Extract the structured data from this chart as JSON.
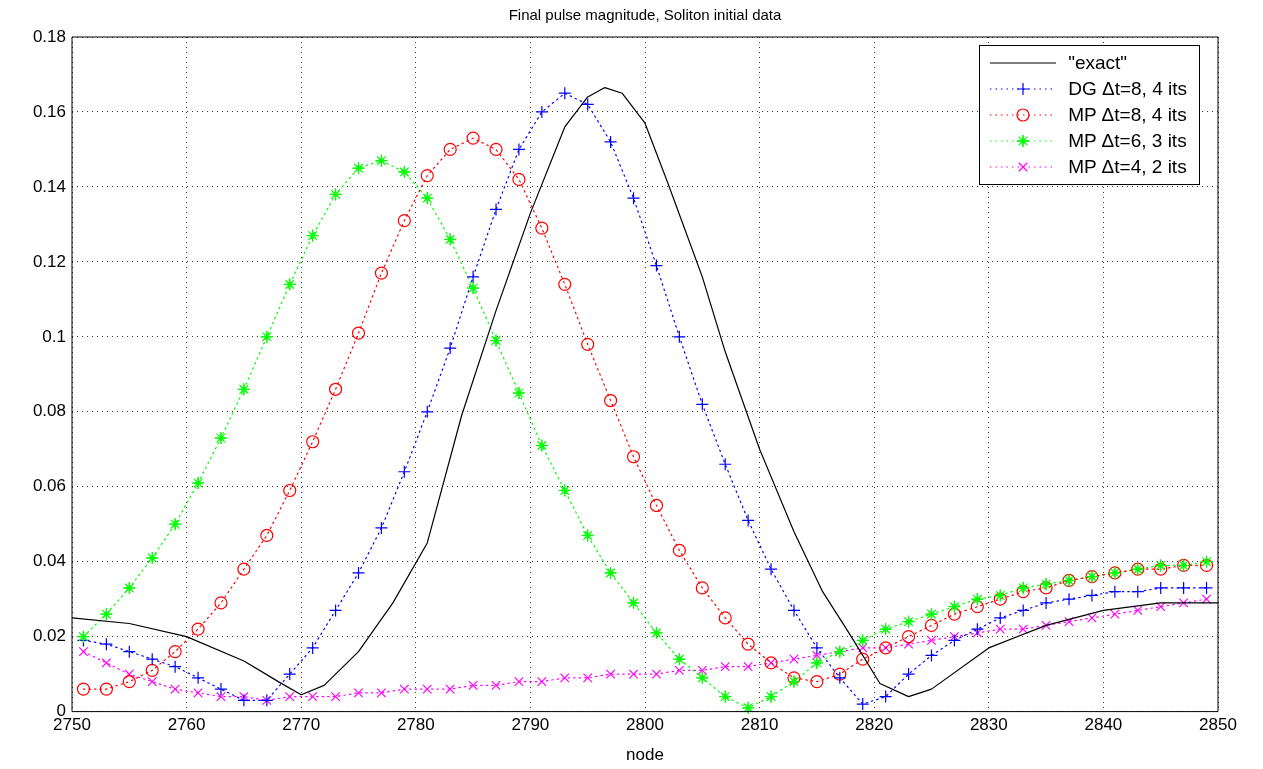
{
  "chart_data": {
    "type": "line",
    "title": "Final pulse magnitude, Soliton initial data",
    "xlabel": "node",
    "xlim": [
      2750,
      2850
    ],
    "xticks": [
      2750,
      2760,
      2770,
      2780,
      2790,
      2800,
      2810,
      2820,
      2830,
      2840,
      2850
    ],
    "ylim": [
      0,
      0.18
    ],
    "yticks": [
      0,
      0.02,
      0.04,
      0.06,
      0.08,
      0.1,
      0.12,
      0.14,
      0.16,
      0.18
    ],
    "grid": true,
    "legend": "top right",
    "series": [
      {
        "name": "\"exact\"",
        "color": "#000000",
        "marker": "none",
        "line_style": "solid",
        "x": [
          2750,
          2755,
          2760,
          2765,
          2768,
          2770,
          2772,
          2775,
          2778,
          2781,
          2784,
          2787,
          2790,
          2793,
          2795,
          2796.5,
          2798,
          2800,
          2802,
          2805,
          2807,
          2810,
          2813,
          2815.5,
          2818,
          2820.5,
          2823,
          2825,
          2830,
          2835,
          2840,
          2845,
          2850
        ],
        "values": [
          0.025,
          0.0235,
          0.02,
          0.0135,
          0.008,
          0.0045,
          0.007,
          0.016,
          0.029,
          0.045,
          0.079,
          0.107,
          0.133,
          0.156,
          0.164,
          0.1665,
          0.165,
          0.157,
          0.141,
          0.116,
          0.096,
          0.07,
          0.048,
          0.032,
          0.02,
          0.0075,
          0.004,
          0.006,
          0.017,
          0.023,
          0.027,
          0.029,
          0.029
        ]
      },
      {
        "name": "DG Δt=8, 4 its",
        "color": "#0000ff",
        "marker": "cross",
        "line_style": "dotted",
        "x": [
          2751,
          2753,
          2755,
          2757,
          2759,
          2761,
          2763,
          2765,
          2767,
          2769,
          2771,
          2773,
          2775,
          2777,
          2779,
          2781,
          2783,
          2785,
          2787,
          2789,
          2791,
          2793,
          2795,
          2797,
          2799,
          2801,
          2803,
          2805,
          2807,
          2809,
          2811,
          2813,
          2815,
          2817,
          2819,
          2821,
          2823,
          2825,
          2827,
          2829,
          2831,
          2833,
          2835,
          2837,
          2839,
          2841,
          2843,
          2845,
          2847,
          2849
        ],
        "values": [
          0.019,
          0.018,
          0.016,
          0.014,
          0.012,
          0.009,
          0.006,
          0.003,
          0.003,
          0.01,
          0.017,
          0.027,
          0.037,
          0.049,
          0.064,
          0.08,
          0.097,
          0.116,
          0.134,
          0.15,
          0.16,
          0.165,
          0.162,
          0.152,
          0.137,
          0.119,
          0.1,
          0.082,
          0.066,
          0.051,
          0.038,
          0.027,
          0.017,
          0.009,
          0.002,
          0.004,
          0.01,
          0.015,
          0.019,
          0.022,
          0.025,
          0.027,
          0.029,
          0.03,
          0.031,
          0.032,
          0.032,
          0.033,
          0.033,
          0.033
        ]
      },
      {
        "name": "MP Δt=8, 4 its",
        "color": "#ff0000",
        "marker": "circle",
        "line_style": "dotted",
        "x": [
          2751,
          2753,
          2755,
          2757,
          2759,
          2761,
          2763,
          2765,
          2767,
          2769,
          2771,
          2773,
          2775,
          2777,
          2779,
          2781,
          2783,
          2785,
          2787,
          2789,
          2791,
          2793,
          2795,
          2797,
          2799,
          2801,
          2803,
          2805,
          2807,
          2809,
          2811,
          2813,
          2815,
          2817,
          2819,
          2821,
          2823,
          2825,
          2827,
          2829,
          2831,
          2833,
          2835,
          2837,
          2839,
          2841,
          2843,
          2845,
          2847,
          2849
        ],
        "values": [
          0.006,
          0.006,
          0.008,
          0.011,
          0.016,
          0.022,
          0.029,
          0.038,
          0.047,
          0.059,
          0.072,
          0.086,
          0.101,
          0.117,
          0.131,
          0.143,
          0.15,
          0.153,
          0.15,
          0.142,
          0.129,
          0.114,
          0.098,
          0.083,
          0.068,
          0.055,
          0.043,
          0.033,
          0.025,
          0.018,
          0.013,
          0.009,
          0.008,
          0.01,
          0.014,
          0.017,
          0.02,
          0.023,
          0.026,
          0.028,
          0.03,
          0.032,
          0.033,
          0.035,
          0.036,
          0.037,
          0.038,
          0.038,
          0.039,
          0.039
        ]
      },
      {
        "name": "MP Δt=6, 3 its",
        "color": "#00ff00",
        "marker": "star",
        "line_style": "dotted",
        "x": [
          2751,
          2753,
          2755,
          2757,
          2759,
          2761,
          2763,
          2765,
          2767,
          2769,
          2771,
          2773,
          2775,
          2777,
          2779,
          2781,
          2783,
          2785,
          2787,
          2789,
          2791,
          2793,
          2795,
          2797,
          2799,
          2801,
          2803,
          2805,
          2807,
          2809,
          2811,
          2813,
          2815,
          2817,
          2819,
          2821,
          2823,
          2825,
          2827,
          2829,
          2831,
          2833,
          2835,
          2837,
          2839,
          2841,
          2843,
          2845,
          2847,
          2849
        ],
        "values": [
          0.02,
          0.026,
          0.033,
          0.041,
          0.05,
          0.061,
          0.073,
          0.086,
          0.1,
          0.114,
          0.127,
          0.138,
          0.145,
          0.147,
          0.144,
          0.137,
          0.126,
          0.113,
          0.099,
          0.085,
          0.071,
          0.059,
          0.047,
          0.037,
          0.029,
          0.021,
          0.014,
          0.009,
          0.004,
          0.001,
          0.004,
          0.008,
          0.013,
          0.016,
          0.019,
          0.022,
          0.024,
          0.026,
          0.028,
          0.03,
          0.031,
          0.033,
          0.034,
          0.035,
          0.036,
          0.037,
          0.038,
          0.039,
          0.039,
          0.04
        ]
      },
      {
        "name": "MP Δt=4, 2 its",
        "color": "#ff00ff",
        "marker": "x",
        "line_style": "dotted",
        "x": [
          2751,
          2753,
          2755,
          2757,
          2759,
          2761,
          2763,
          2765,
          2767,
          2769,
          2771,
          2773,
          2775,
          2777,
          2779,
          2781,
          2783,
          2785,
          2787,
          2789,
          2791,
          2793,
          2795,
          2797,
          2799,
          2801,
          2803,
          2805,
          2807,
          2809,
          2811,
          2813,
          2815,
          2817,
          2819,
          2821,
          2823,
          2825,
          2827,
          2829,
          2831,
          2833,
          2835,
          2837,
          2839,
          2841,
          2843,
          2845,
          2847,
          2849
        ],
        "values": [
          0.016,
          0.013,
          0.01,
          0.008,
          0.006,
          0.005,
          0.004,
          0.004,
          0.003,
          0.004,
          0.004,
          0.004,
          0.005,
          0.005,
          0.006,
          0.006,
          0.006,
          0.007,
          0.007,
          0.008,
          0.008,
          0.009,
          0.009,
          0.01,
          0.01,
          0.01,
          0.011,
          0.011,
          0.012,
          0.012,
          0.013,
          0.014,
          0.015,
          0.016,
          0.017,
          0.017,
          0.018,
          0.019,
          0.02,
          0.021,
          0.022,
          0.022,
          0.023,
          0.024,
          0.025,
          0.026,
          0.027,
          0.028,
          0.029,
          0.03
        ]
      }
    ]
  }
}
